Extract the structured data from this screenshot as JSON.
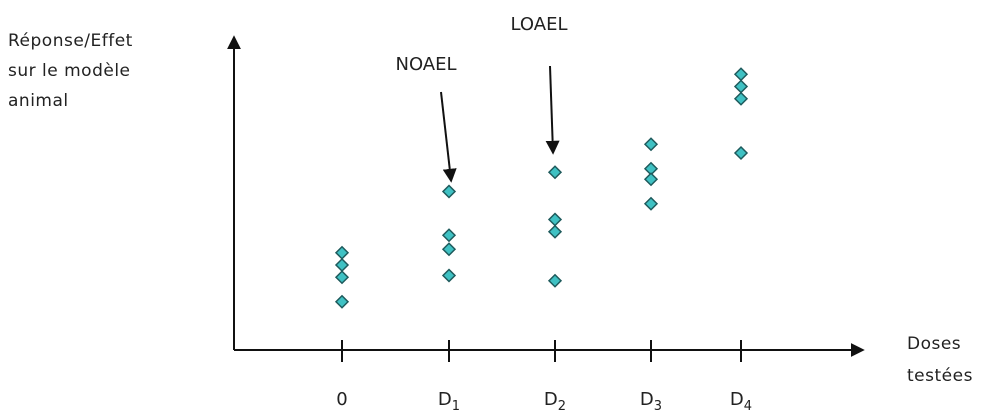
{
  "chart_data": {
    "type": "scatter",
    "ylabel": "Réponse/Effet\nsur le modèle\nanimal",
    "xlabel": "Doses\ntestées",
    "categories": [
      {
        "base": "0",
        "sub": ""
      },
      {
        "base": "D",
        "sub": "1"
      },
      {
        "base": "D",
        "sub": "2"
      },
      {
        "base": "D",
        "sub": "3"
      },
      {
        "base": "D",
        "sub": "4"
      }
    ],
    "series": [
      {
        "values": [
          [
            0,
            2.35
          ],
          [
            0,
            2.0
          ],
          [
            0,
            1.65
          ],
          [
            0,
            0.95
          ],
          [
            1,
            4.1
          ],
          [
            1,
            2.85
          ],
          [
            1,
            2.45
          ],
          [
            1,
            1.7
          ],
          [
            2,
            4.65
          ],
          [
            2,
            3.3
          ],
          [
            2,
            2.95
          ],
          [
            2,
            1.55
          ],
          [
            3,
            5.45
          ],
          [
            3,
            4.75
          ],
          [
            3,
            4.45
          ],
          [
            3,
            3.75
          ],
          [
            4,
            7.45
          ],
          [
            4,
            7.1
          ],
          [
            4,
            6.75
          ],
          [
            4,
            5.2
          ]
        ]
      }
    ],
    "annotations": [
      {
        "text": "NOAEL",
        "category": 1
      },
      {
        "text": "LOAEL",
        "category": 2
      }
    ],
    "colors": {
      "marker_fill": "#3fc1c3",
      "marker_stroke": "#1e5a5c",
      "axis": "#111111"
    },
    "grid": false
  }
}
